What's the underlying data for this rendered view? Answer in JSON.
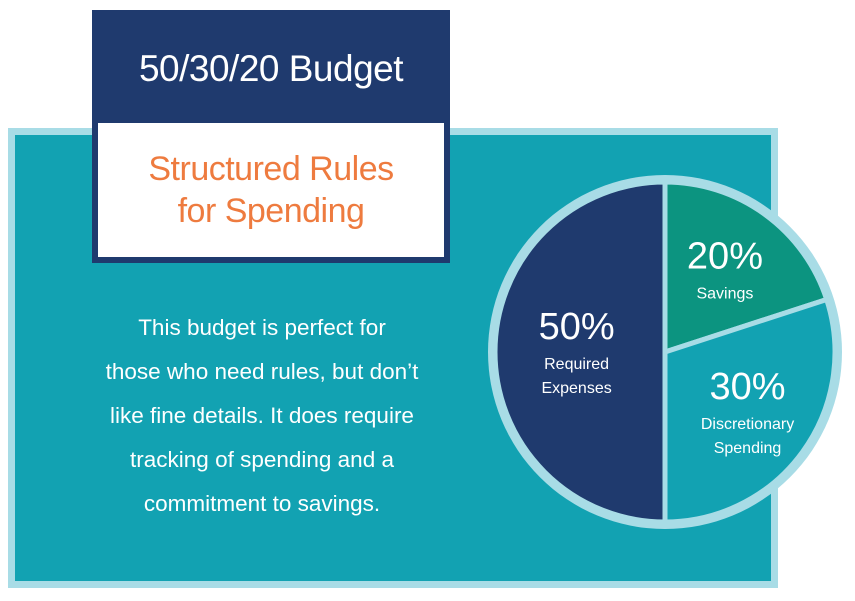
{
  "header": {
    "title": "50/30/20 Budget",
    "subtitle_line1": "Structured Rules",
    "subtitle_line2": "for Spending"
  },
  "description": {
    "lines": [
      "This budget is perfect for",
      "those who need rules, but don’t",
      "like fine details. It does require",
      "tracking of spending and a",
      "commitment to savings."
    ]
  },
  "colors": {
    "navy": "#1f3a6e",
    "teal_panel": "#12a2b2",
    "panel_border": "#a8dce6",
    "orange": "#ee7b3f",
    "savings_green": "#0c9480",
    "discretionary_teal": "#12a2b2"
  },
  "chart_data": {
    "type": "pie",
    "slices": [
      {
        "label_lines": [
          "Savings"
        ],
        "percent_label": "20%",
        "value": 20,
        "color": "#0c9480"
      },
      {
        "label_lines": [
          "Discretionary",
          "Spending"
        ],
        "percent_label": "30%",
        "value": 30,
        "color": "#12a2b2"
      },
      {
        "label_lines": [
          "Required",
          "Expenses"
        ],
        "percent_label": "50%",
        "value": 50,
        "color": "#1f3a6e"
      }
    ],
    "start_angle_deg": 0,
    "direction": "clockwise",
    "ring_color": "#a8dce6"
  }
}
